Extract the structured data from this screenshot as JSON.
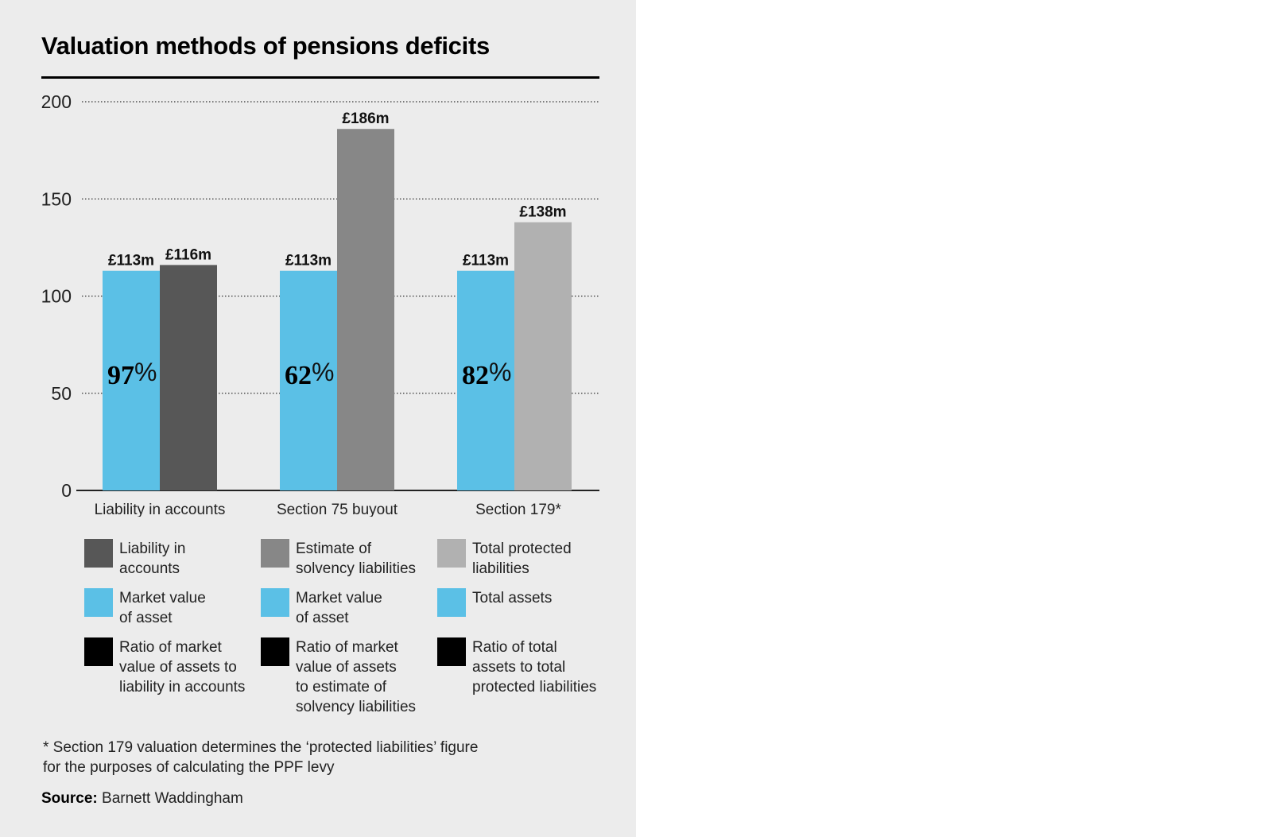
{
  "title": "Valuation methods of pensions deficits",
  "colors": {
    "panel_bg": "#ececec",
    "market_value": "#5bc0e6",
    "liability_accounts": "#575757",
    "solvency": "#878787",
    "protected": "#b1b1b1",
    "ratio": "#000000"
  },
  "chart_data": {
    "type": "bar",
    "title": "Valuation methods of pensions deficits",
    "xlabel": "",
    "ylabel": "",
    "ylim": [
      0,
      200
    ],
    "yticks": [
      0,
      50,
      100,
      150,
      200
    ],
    "grid": true,
    "categories": [
      "Liability in accounts",
      "Section 75 buyout",
      "Section 179*"
    ],
    "groups": [
      {
        "category": "Liability in accounts",
        "bars": [
          {
            "series": "Market value of asset",
            "value": 113,
            "label": "£113m",
            "color": "#5bc0e6"
          },
          {
            "series": "Liability in accounts",
            "value": 116,
            "label": "£116m",
            "color": "#575757"
          }
        ],
        "ratio": {
          "number": "97",
          "sign": "%"
        }
      },
      {
        "category": "Section 75 buyout",
        "bars": [
          {
            "series": "Market value of asset",
            "value": 113,
            "label": "£113m",
            "color": "#5bc0e6"
          },
          {
            "series": "Estimate of solvency liabilities",
            "value": 186,
            "label": "£186m",
            "color": "#878787"
          }
        ],
        "ratio": {
          "number": "62",
          "sign": "%"
        }
      },
      {
        "category": "Section 179*",
        "bars": [
          {
            "series": "Total assets",
            "value": 113,
            "label": "£113m",
            "color": "#5bc0e6"
          },
          {
            "series": "Total protected liabilities",
            "value": 138,
            "label": "£138m",
            "color": "#b1b1b1"
          }
        ],
        "ratio": {
          "number": "82",
          "sign": "%"
        }
      }
    ]
  },
  "legend": [
    {
      "text": "Liability in\naccounts",
      "color": "#575757"
    },
    {
      "text": "Estimate of\nsolvency liabilities",
      "color": "#878787"
    },
    {
      "text": "Total protected\nliabilities",
      "color": "#b1b1b1"
    },
    {
      "text": "Market value\nof asset",
      "color": "#5bc0e6"
    },
    {
      "text": "Market value\nof asset",
      "color": "#5bc0e6"
    },
    {
      "text": "Total assets",
      "color": "#5bc0e6"
    },
    {
      "text": "Ratio of market\nvalue of assets to\nliability in accounts",
      "color": "#000000"
    },
    {
      "text": "Ratio of market\nvalue of assets\nto estimate of\nsolvency liabilities",
      "color": "#000000"
    },
    {
      "text": "Ratio of total\nassets to total\nprotected liabilities",
      "color": "#000000"
    }
  ],
  "footnote": "* Section 179 valuation determines the ‘protected liabilities’ figure\n   for the purposes of calculating the PPF levy",
  "source": {
    "label": "Source:",
    "text": " Barnett Waddingham"
  }
}
